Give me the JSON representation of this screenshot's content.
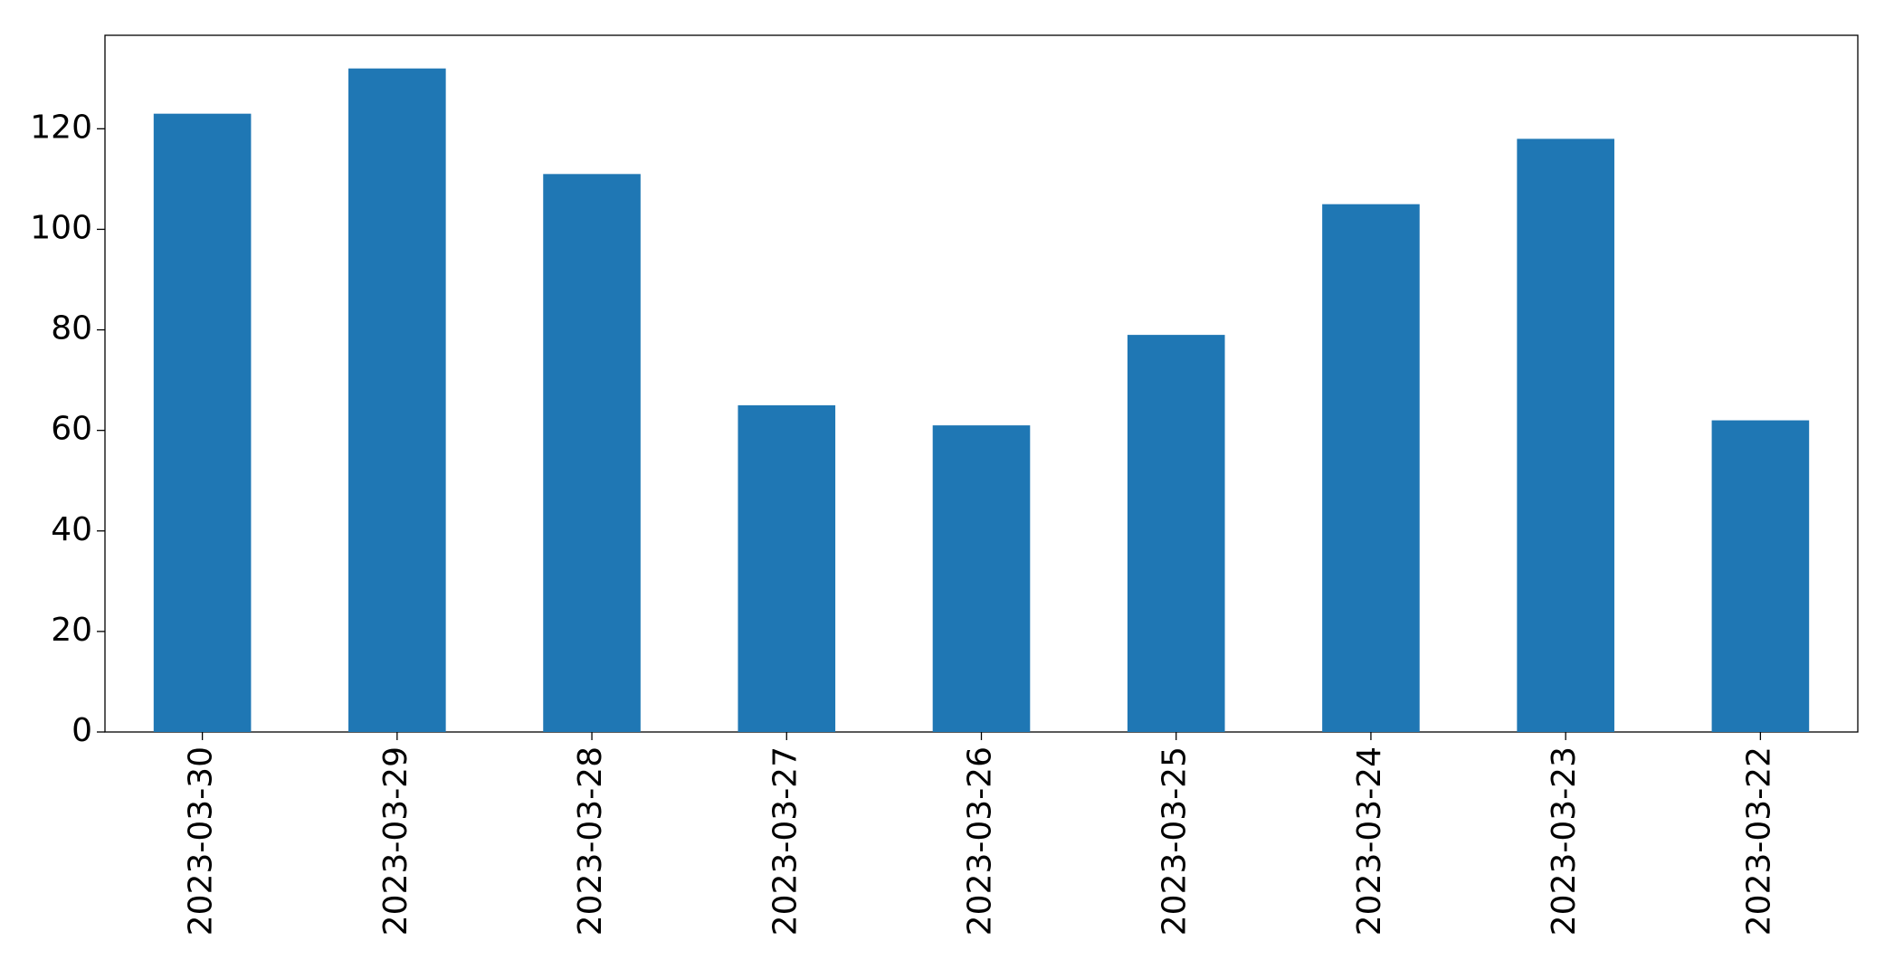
{
  "chart_data": {
    "type": "bar",
    "categories": [
      "2023-03-30",
      "2023-03-29",
      "2023-03-28",
      "2023-03-27",
      "2023-03-26",
      "2023-03-25",
      "2023-03-24",
      "2023-03-23",
      "2023-03-22"
    ],
    "values": [
      123,
      132,
      111,
      65,
      61,
      79,
      105,
      118,
      62
    ],
    "color": "#1f77b4",
    "ylim": [
      0,
      138.6
    ],
    "yticks": [
      0,
      20,
      40,
      60,
      80,
      100,
      120
    ],
    "grid": false
  }
}
